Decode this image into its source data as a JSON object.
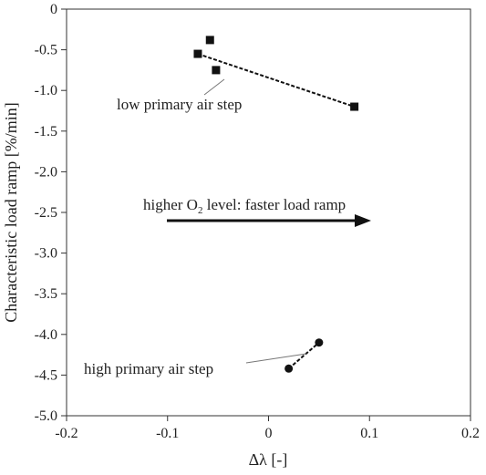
{
  "chart_data": {
    "type": "scatter",
    "title": "",
    "xlabel": "Δλ [-]",
    "ylabel": "Characteristic load ramp [%/min]",
    "xlim": [
      -0.2,
      0.2
    ],
    "ylim": [
      -5.0,
      0
    ],
    "grid": false,
    "legend": "none",
    "x_ticks": [
      -0.2,
      -0.1,
      0,
      0.1,
      0.2
    ],
    "x_tick_labels": [
      "-0.2",
      "-0.1",
      "0",
      "0.1",
      "0.2"
    ],
    "y_ticks": [
      0,
      -0.5,
      -1.0,
      -1.5,
      -2.0,
      -2.5,
      -3.0,
      -3.5,
      -4.0,
      -4.5,
      -5.0
    ],
    "y_tick_labels": [
      "0",
      "-0.5",
      "-1.0",
      "-1.5",
      "-2.0",
      "-2.5",
      "-3.0",
      "-3.5",
      "-4.0",
      "-4.5",
      "-5.0"
    ],
    "series": [
      {
        "marker": "square",
        "color": "#111111",
        "points": [
          {
            "x": -0.07,
            "y": -0.55
          },
          {
            "x": -0.058,
            "y": -0.38
          },
          {
            "x": -0.052,
            "y": -0.75
          },
          {
            "x": 0.085,
            "y": -1.2
          }
        ],
        "trendline": {
          "x": [
            -0.07,
            0.085
          ],
          "y": [
            -0.55,
            -1.2
          ]
        }
      },
      {
        "marker": "circle",
        "color": "#111111",
        "points": [
          {
            "x": 0.02,
            "y": -4.42
          },
          {
            "x": 0.05,
            "y": -4.1
          }
        ],
        "trendline": {
          "x": [
            0.02,
            0.05
          ],
          "y": [
            -4.42,
            -4.1
          ]
        }
      }
    ],
    "annotations": {
      "low_label": "low primary air step",
      "high_label": "high primary air step",
      "arrow_text_prefix": "higher O",
      "arrow_text_sub": "2",
      "arrow_text_suffix": " level: faster load ramp"
    }
  }
}
